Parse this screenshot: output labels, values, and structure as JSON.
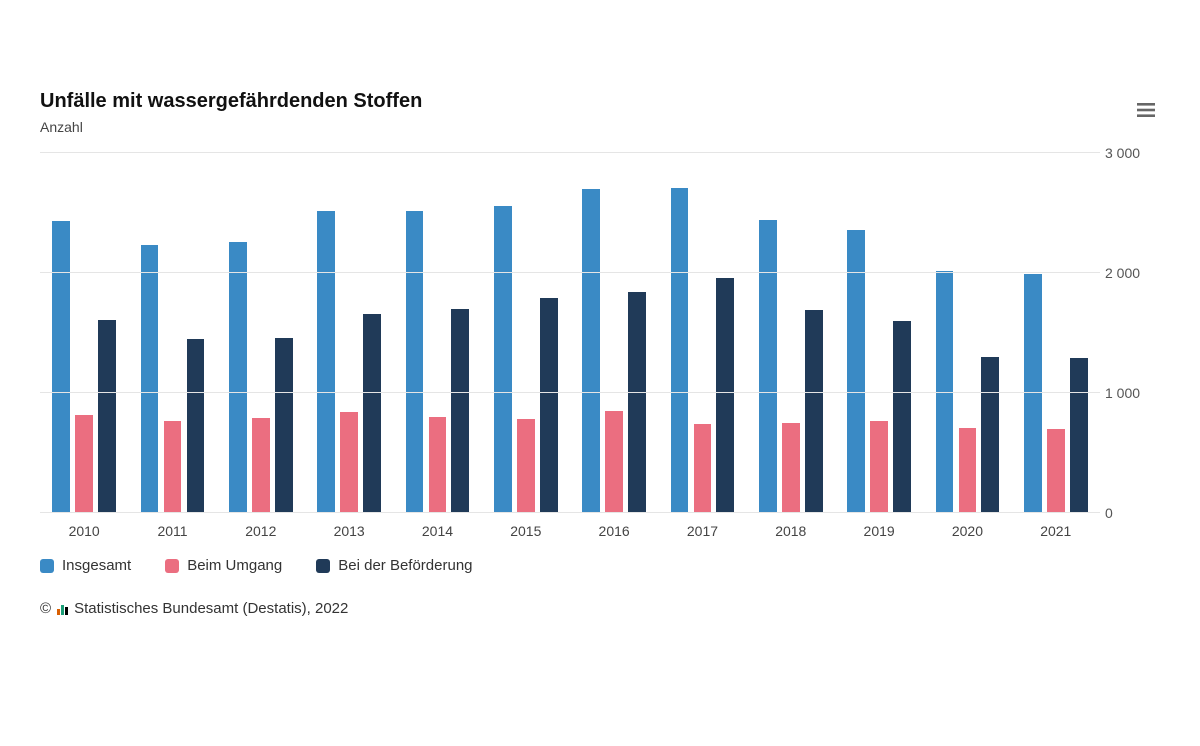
{
  "chart": {
    "type": "bar",
    "title": "Unfälle mit wassergefährdenden Stoffen",
    "subtitle": "Anzahl",
    "background_color": "#ffffff",
    "grid_color": "#e5e5e5",
    "title_fontsize": 20,
    "label_fontsize": 14,
    "categories": [
      "2010",
      "2011",
      "2012",
      "2013",
      "2014",
      "2015",
      "2016",
      "2017",
      "2018",
      "2019",
      "2020",
      "2021"
    ],
    "yaxis": {
      "min": 0,
      "max": 3000,
      "ticks": [
        0,
        1000,
        2000,
        3000
      ],
      "tick_labels": [
        "0",
        "1 000",
        "2 000",
        "3 000"
      ],
      "position": "right"
    },
    "series": [
      {
        "name": "Insgesamt",
        "color": "#3a8ac5",
        "values": [
          2430,
          2230,
          2260,
          2520,
          2520,
          2560,
          2700,
          2710,
          2440,
          2360,
          2020,
          1990
        ]
      },
      {
        "name": "Beim Umgang",
        "color": "#eb6e80",
        "values": [
          820,
          770,
          790,
          840,
          800,
          780,
          850,
          740,
          750,
          770,
          710,
          700
        ]
      },
      {
        "name": "Bei der Beförderung",
        "color": "#203a58",
        "values": [
          1610,
          1450,
          1460,
          1660,
          1700,
          1790,
          1840,
          1960,
          1690,
          1600,
          1300,
          1290
        ]
      }
    ]
  },
  "menu": {
    "tooltip": "Chart context menu"
  },
  "source": {
    "copyright": "©",
    "text": "Statistisches Bundesamt (Destatis), 2022",
    "icon_colors": [
      "#d95f02",
      "#1b9e77",
      "#000000"
    ]
  }
}
